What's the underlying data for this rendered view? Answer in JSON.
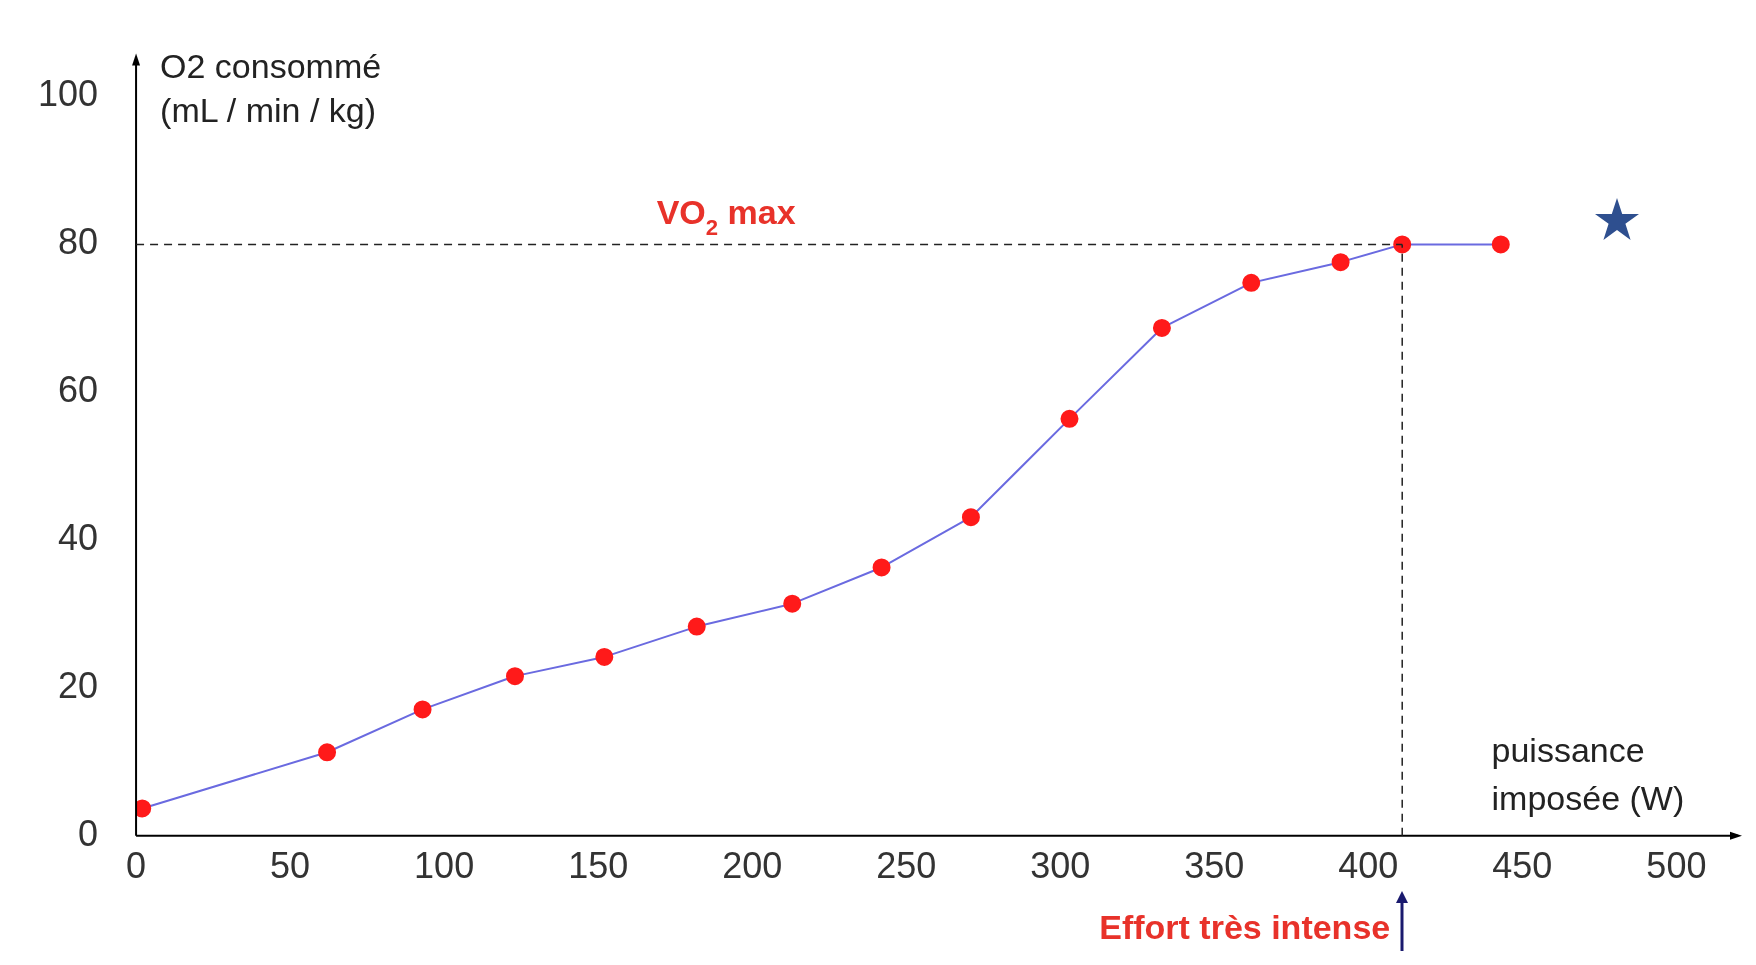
{
  "chart_data": {
    "type": "line",
    "xlabel": "puissance imposée (W)",
    "ylabel": "O2 consommé (mL / min / kg)",
    "x": [
      2,
      62,
      93,
      123,
      152,
      182,
      213,
      242,
      271,
      303,
      333,
      362,
      391,
      411,
      443
    ],
    "series": [
      {
        "color": "#6a6ae0",
        "colors": [
          "#ff1a1a",
          "#ff1a1a",
          "#ff1a1a",
          "#ff1a1a",
          "#ff1a1a",
          "#ff1a1a",
          "#ff1a1a",
          "#ff1a1a",
          "#ff1a1a",
          "#ff1a1a",
          "#ff1a1a",
          "#ff1a1a",
          "#ff1a1a",
          "#ff1a1a",
          "#ff1a1a"
        ],
        "values": [
          3.7,
          11.3,
          17.1,
          21.6,
          24.2,
          28.3,
          31.4,
          36.3,
          43.1,
          56.4,
          68.7,
          74.8,
          77.6,
          80,
          80
        ]
      }
    ],
    "marker": "circle",
    "line_style": "solid",
    "grid": false,
    "legend": false,
    "xlim": [
      0,
      520
    ],
    "xticks": [
      0,
      50,
      100,
      150,
      200,
      250,
      300,
      350,
      400,
      450,
      500
    ],
    "ylim": [
      0,
      105
    ],
    "yticks": [
      0,
      20,
      40,
      60,
      80,
      100
    ],
    "ref_lines": [
      {
        "axis": "y",
        "value": 80,
        "label": "VO$_{2}$ max",
        "color": "#222222",
        "line_style": "dashed"
      },
      {
        "axis": "x",
        "value": 411,
        "label": "Effort très intense",
        "color": "#222222",
        "line_style": "dashed"
      }
    ]
  }
}
